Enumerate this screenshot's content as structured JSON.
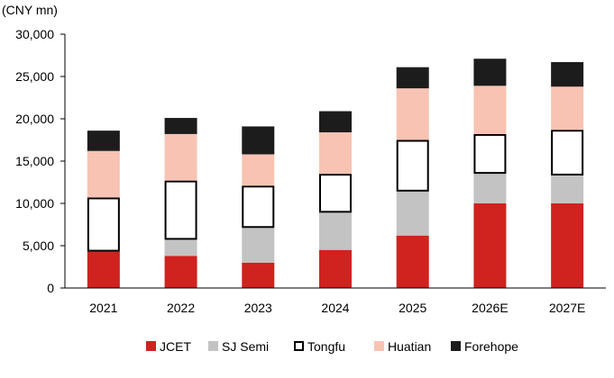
{
  "chart_data": {
    "type": "bar",
    "stacked": true,
    "unit_label": "(CNY mn)",
    "categories": [
      "2021",
      "2022",
      "2023",
      "2024",
      "2025",
      "2026E",
      "2027E"
    ],
    "ylim": [
      0,
      30000
    ],
    "yticks": [
      0,
      5000,
      10000,
      15000,
      20000,
      25000,
      30000
    ],
    "ytick_labels": [
      "0",
      "5,000",
      "10,000",
      "15,000",
      "20,000",
      "25,000",
      "30,000"
    ],
    "grid": false,
    "legend_position": "bottom",
    "series": [
      {
        "name": "JCET",
        "color": "#d0221e",
        "outline": false,
        "values": [
          4300,
          3800,
          3000,
          4500,
          6200,
          10000,
          10000
        ]
      },
      {
        "name": "SJ Semi",
        "color": "#c3c3c3",
        "outline": false,
        "values": [
          0,
          1900,
          4100,
          4400,
          5200,
          3500,
          3300
        ]
      },
      {
        "name": "Tongfu",
        "color": "#ffffff",
        "outline": true,
        "values": [
          6400,
          7000,
          5000,
          4600,
          6100,
          4700,
          5400
        ]
      },
      {
        "name": "Huatian",
        "color": "#f8c3b3",
        "outline": false,
        "values": [
          5500,
          5500,
          3700,
          4900,
          6100,
          5700,
          5100
        ]
      },
      {
        "name": "Forehope",
        "color": "#1c1c1c",
        "outline": false,
        "values": [
          2400,
          1900,
          3300,
          2500,
          2500,
          3200,
          2900
        ]
      }
    ]
  }
}
